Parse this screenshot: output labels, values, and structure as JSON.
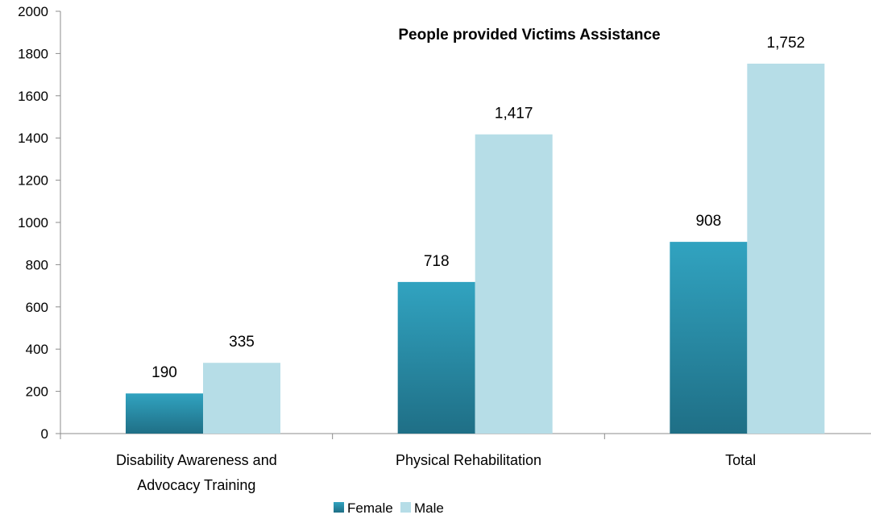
{
  "chart_data": {
    "type": "bar",
    "title": "People provided Victims Assistance",
    "categories": [
      [
        "Disability Awareness and",
        "Advocacy Training"
      ],
      [
        "Physical Rehabilitation"
      ],
      [
        "Total"
      ]
    ],
    "series": [
      {
        "name": "Female",
        "values": [
          190,
          718,
          908
        ],
        "labels": [
          "190",
          "718",
          "908"
        ],
        "color": "#2a8fa9"
      },
      {
        "name": "Male",
        "values": [
          335,
          1417,
          1752
        ],
        "labels": [
          "335",
          "1,417",
          "1,752"
        ],
        "color": "#b6dde7"
      }
    ],
    "ylim": [
      0,
      2000
    ],
    "yticks": [
      0,
      200,
      400,
      600,
      800,
      1000,
      1200,
      1400,
      1600,
      1800,
      2000
    ],
    "grid": false,
    "legend_position": "bottom"
  }
}
